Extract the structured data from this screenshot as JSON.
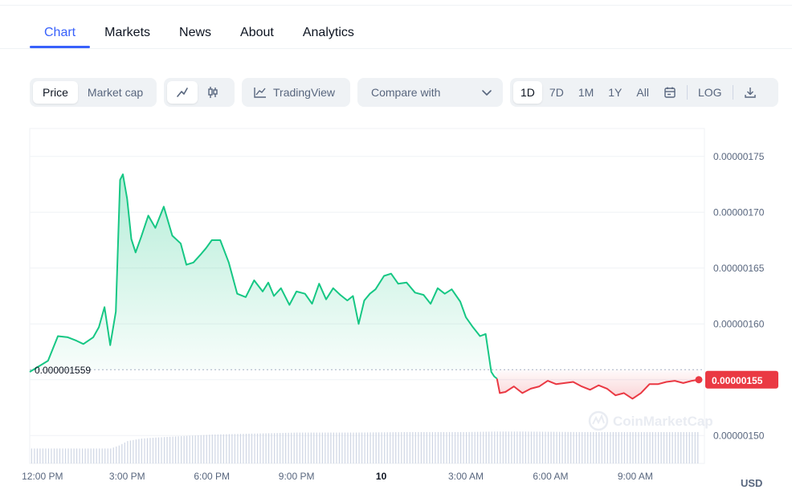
{
  "tabs": [
    {
      "label": "Chart",
      "active": true
    },
    {
      "label": "Markets",
      "active": false
    },
    {
      "label": "News",
      "active": false
    },
    {
      "label": "About",
      "active": false
    },
    {
      "label": "Analytics",
      "active": false
    }
  ],
  "toolbar": {
    "price_label": "Price",
    "market_cap_label": "Market cap",
    "line_icon": "line-chart-icon",
    "candle_icon": "candlestick-icon",
    "tradingview_label": "TradingView",
    "compare_label": "Compare with",
    "ranges": [
      "1D",
      "7D",
      "1M",
      "1Y",
      "All"
    ],
    "selected_range": "1D",
    "calendar_icon": "calendar-icon",
    "log_label": "LOG",
    "download_icon": "download-icon"
  },
  "colors": {
    "accent": "#3861fb",
    "up": "#16c784",
    "down": "#ea3943",
    "grid": "#eff2f5",
    "axis_text": "#58667e"
  },
  "chart_data": {
    "type": "area",
    "y_ticks": [
      "0.00000175",
      "0.00000170",
      "0.00000165",
      "0.00000160",
      "0.00000150"
    ],
    "y_ticks_values": [
      1.75e-06,
      1.7e-06,
      1.65e-06,
      1.6e-06,
      1.5e-06
    ],
    "ylim": [
      1.475e-06,
      1.775e-06
    ],
    "x_ticks": [
      "12:00 PM",
      "3:00 PM",
      "6:00 PM",
      "9:00 PM",
      "10",
      "3:00 AM",
      "6:00 AM",
      "9:00 AM"
    ],
    "x_ticks_hours": [
      0,
      3,
      6,
      9,
      12,
      15,
      18,
      21
    ],
    "xlim": [
      -0.45,
      23.45
    ],
    "reference_label": "0.000001559",
    "reference_value": 1.559e-06,
    "current_price_label": "0.00000155",
    "current_price": 1.55e-06,
    "currency": "USD",
    "watermark": "CoinMarketCap",
    "series": [
      {
        "x": [
          -0.45,
          0.2,
          0.55,
          0.9,
          1.2,
          1.45,
          1.8,
          2.0,
          2.2,
          2.4,
          2.6,
          2.75,
          2.85,
          3.0,
          3.15,
          3.3,
          3.5,
          3.75,
          4.0,
          4.3,
          4.6,
          4.9,
          5.1,
          5.35,
          5.6,
          5.8,
          6.0,
          6.3,
          6.6,
          6.9,
          7.2,
          7.5,
          7.8,
          8.0,
          8.2,
          8.45,
          8.75,
          9.0,
          9.3,
          9.55,
          9.8,
          10.05,
          10.3,
          10.55,
          10.8,
          11.0,
          11.2,
          11.4,
          11.6,
          11.8,
          12.1,
          12.35,
          12.6,
          12.9,
          13.2,
          13.5,
          13.75,
          14.0,
          14.25,
          14.5,
          14.8,
          15.0,
          15.25,
          15.5,
          15.7,
          15.9,
          16.0,
          16.1
        ],
        "y": [
          1.557e-06,
          1.567e-06,
          1.589e-06,
          1.588e-06,
          1.585e-06,
          1.582e-06,
          1.588e-06,
          1.597e-06,
          1.615e-06,
          1.581e-06,
          1.611e-06,
          1.729e-06,
          1.734e-06,
          1.712e-06,
          1.676e-06,
          1.664e-06,
          1.678e-06,
          1.697e-06,
          1.686e-06,
          1.705e-06,
          1.679e-06,
          1.672e-06,
          1.653e-06,
          1.655e-06,
          1.662e-06,
          1.668e-06,
          1.675e-06,
          1.675e-06,
          1.655e-06,
          1.627e-06,
          1.624e-06,
          1.639e-06,
          1.629e-06,
          1.637e-06,
          1.625e-06,
          1.632e-06,
          1.617e-06,
          1.629e-06,
          1.627e-06,
          1.618e-06,
          1.636e-06,
          1.622e-06,
          1.632e-06,
          1.626e-06,
          1.621e-06,
          1.625e-06,
          1.6e-06,
          1.621e-06,
          1.627e-06,
          1.631e-06,
          1.643e-06,
          1.645e-06,
          1.636e-06,
          1.637e-06,
          1.628e-06,
          1.626e-06,
          1.618e-06,
          1.632e-06,
          1.627e-06,
          1.631e-06,
          1.62e-06,
          1.606e-06,
          1.597e-06,
          1.589e-06,
          1.591e-06,
          1.557e-06,
          1.553e-06,
          1.551e-06
        ]
      },
      {
        "x": [
          16.1,
          16.2,
          16.4,
          16.7,
          17.0,
          17.3,
          17.6,
          17.9,
          18.2,
          18.5,
          18.8,
          19.1,
          19.4,
          19.7,
          20.0,
          20.3,
          20.6,
          20.9,
          21.2,
          21.5,
          21.8,
          22.1,
          22.4,
          22.7,
          23.0,
          23.25
        ],
        "y": [
          1.551e-06,
          1.538e-06,
          1.539e-06,
          1.544e-06,
          1.538e-06,
          1.542e-06,
          1.544e-06,
          1.549e-06,
          1.546e-06,
          1.547e-06,
          1.548e-06,
          1.544e-06,
          1.541e-06,
          1.545e-06,
          1.542e-06,
          1.536e-06,
          1.538e-06,
          1.533e-06,
          1.538e-06,
          1.546e-06,
          1.546e-06,
          1.548e-06,
          1.549e-06,
          1.547e-06,
          1.549e-06,
          1.55e-06
        ]
      }
    ],
    "volume": {
      "x": [
        -0.45,
        2.4,
        2.7,
        3.0,
        3.5,
        4.0,
        5.0,
        6.0,
        7.5,
        9.0,
        11.0,
        13.0,
        15.0,
        16.0,
        17.0,
        19.0,
        21.0,
        23.25
      ],
      "values": [
        0.3,
        0.3,
        0.36,
        0.45,
        0.5,
        0.52,
        0.55,
        0.58,
        0.6,
        0.62,
        0.62,
        0.63,
        0.63,
        0.64,
        0.64,
        0.63,
        0.63,
        0.63
      ]
    }
  }
}
